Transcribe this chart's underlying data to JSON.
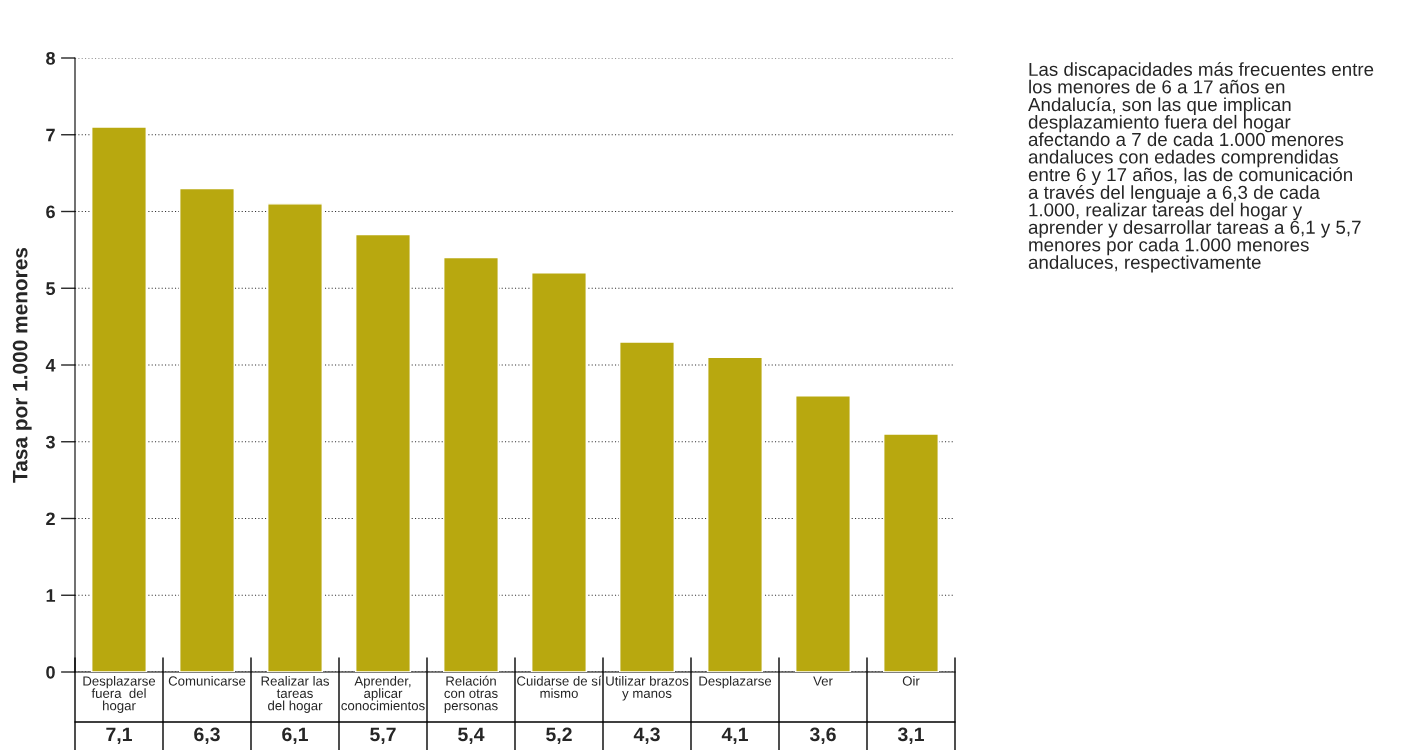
{
  "chart_data": {
    "type": "bar",
    "ylabel": "Tasa por 1.000 menores",
    "categories": [
      "Desplazarse\nfuera  del\nhogar",
      "Comunicarse",
      "Realizar las\ntareas\ndel hogar",
      "Aprender,\naplicar\nconocimientos",
      "Relación\ncon otras\npersonas",
      "Cuidarse de sí\nmismo",
      "Utilizar brazos\ny manos",
      "Desplazarse",
      "Ver",
      "Oir"
    ],
    "values": [
      7.1,
      6.3,
      6.1,
      5.7,
      5.4,
      5.2,
      4.3,
      4.1,
      3.6,
      3.1
    ],
    "value_labels": [
      "7,1",
      "6,3",
      "6,1",
      "5,7",
      "5,4",
      "5,2",
      "4,3",
      "4,1",
      "3,6",
      "3,1"
    ],
    "color": "#b8a80f",
    "ylim": [
      0,
      8
    ],
    "yticks": [
      0,
      1,
      2,
      3,
      4,
      5,
      6,
      7,
      8
    ],
    "grid": "y",
    "annotations": [
      "Las discapacidades más frecuentes entre\nlos menores de 6 a 17 años en\nAndalucía, son las que implican\ndesplazamiento fuera del hogar\nafectando a 7 de cada 1.000 menores\nandaluces con edades comprendidas\nentre 6 y 17 años, las de comunicación\na través del lenguaje a 6,3 de cada\n1.000, realizar tareas del hogar y\naprender y desarrollar tareas a 6,1 y 5,7\nmenores por cada 1.000 menores\nandaluces, respectivamente"
    ]
  }
}
